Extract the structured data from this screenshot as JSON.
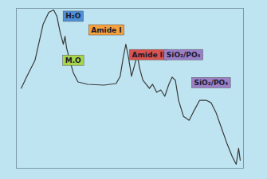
{
  "chart_data": {
    "type": "line",
    "color": "#3a3a3a",
    "tick_labels": false,
    "xlim": [
      0,
      280
    ],
    "ylim": [
      0,
      100
    ],
    "x": [
      6,
      13,
      23,
      33,
      40,
      46,
      50,
      54,
      58,
      60,
      62,
      66,
      70,
      76,
      88,
      108,
      123,
      128,
      132,
      135,
      138,
      142,
      146,
      149,
      152,
      156,
      160,
      164,
      168,
      173,
      178,
      183,
      188,
      192,
      196,
      200,
      206,
      213,
      218,
      226,
      234,
      240,
      246,
      253,
      260,
      266,
      271,
      274,
      276
    ],
    "values": [
      50,
      57.5,
      67.5,
      90,
      97.5,
      99,
      95,
      85,
      77.5,
      82.5,
      75,
      67.5,
      60,
      54,
      52.5,
      52,
      53,
      57.5,
      70,
      77.5,
      70,
      57.5,
      65,
      71,
      62.5,
      55,
      52.5,
      50,
      52.5,
      47.5,
      49,
      45,
      52.5,
      57,
      55,
      42.5,
      32.5,
      30,
      35,
      42.5,
      42.5,
      41,
      35,
      25,
      15,
      7.5,
      2.5,
      12.5,
      5
    ],
    "annotations": [
      {
        "text": "H₂O",
        "x": 70,
        "y": 95,
        "color": "#4f8fd8"
      },
      {
        "text": "M.O",
        "x": 70,
        "y": 67.5,
        "color": "#a8d54a"
      },
      {
        "text": "Amide I",
        "x": 111,
        "y": 86.5,
        "color": "#f6a13c"
      },
      {
        "text": "Amide II",
        "x": 163,
        "y": 71,
        "color": "#d9534f"
      },
      {
        "text": "SiO₂/PO₄",
        "x": 206,
        "y": 71,
        "color": "#9b7fc7"
      },
      {
        "text": "SiO₂/PO₄",
        "x": 240,
        "y": 53.5,
        "color": "#9b7fc7"
      }
    ]
  }
}
